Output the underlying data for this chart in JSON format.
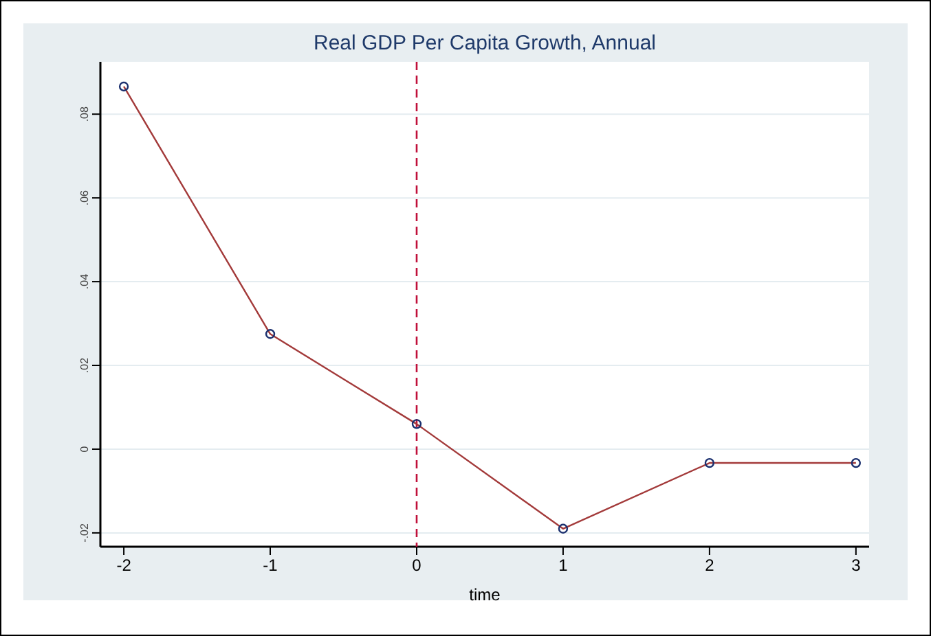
{
  "chart_data": {
    "type": "line",
    "title": "Real GDP Per Capita Growth, Annual",
    "xlabel": "time",
    "x": [
      -2,
      -1,
      0,
      1,
      2,
      3
    ],
    "series": [
      {
        "color": "#a33a3a",
        "values": [
          0.0866,
          0.0275,
          0.006,
          -0.019,
          -0.0033,
          -0.0033
        ]
      }
    ],
    "xlim": [
      -2.16,
      3.09
    ],
    "xticks": [
      -2,
      -1,
      0,
      1,
      2,
      3
    ],
    "ylim": [
      -0.0233,
      0.0925
    ],
    "yticks": [
      {
        "value": -0.02,
        "label": "-.02"
      },
      0,
      {
        "value": 0.02,
        "label": ".02"
      },
      {
        "value": 0.04,
        "label": ".04"
      },
      {
        "value": 0.06,
        "label": ".06"
      },
      {
        "value": 0.08,
        "label": ".08"
      }
    ],
    "grid": "y",
    "marker": "circle",
    "line_style": "solid",
    "ref_lines": [
      {
        "axis": "x",
        "value": 0,
        "color": "#c0103a",
        "line_style": "dashed"
      }
    ]
  }
}
